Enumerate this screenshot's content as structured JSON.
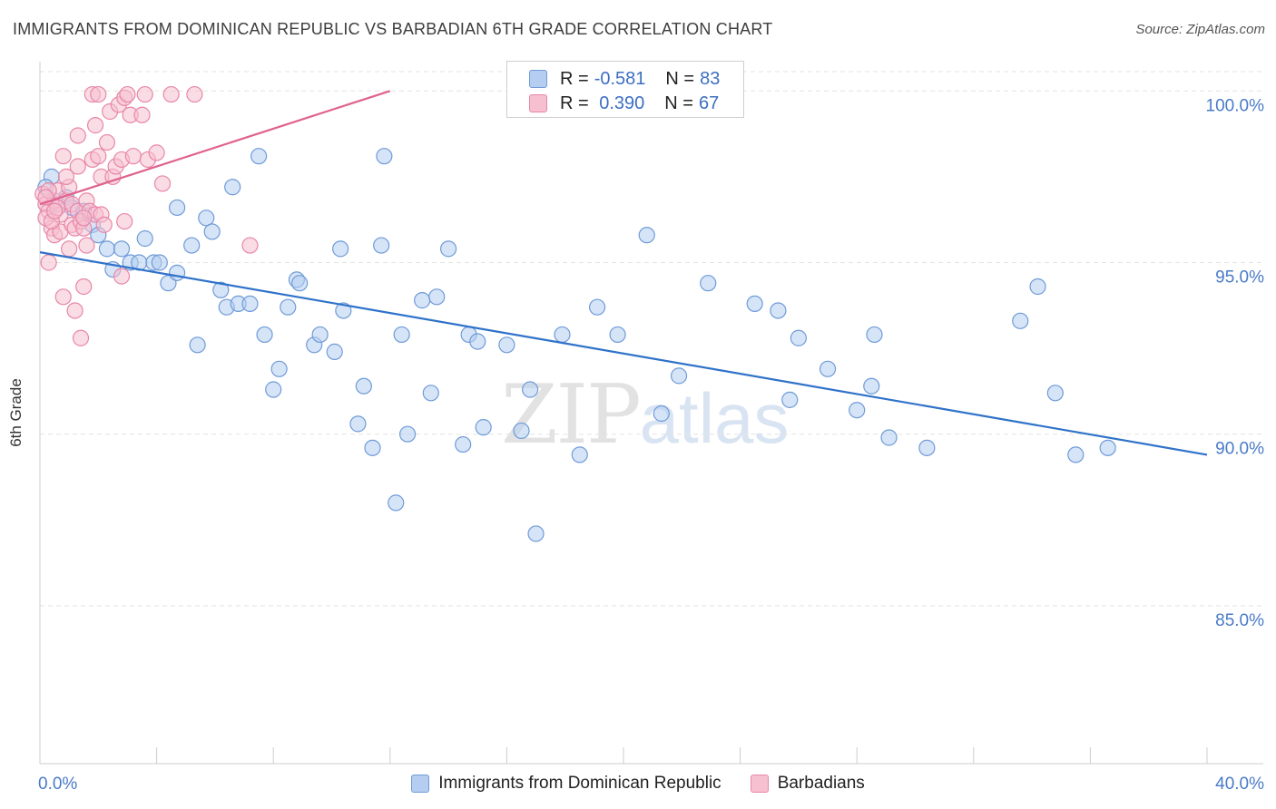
{
  "header": {
    "title": "IMMIGRANTS FROM DOMINICAN REPUBLIC VS BARBADIAN 6TH GRADE CORRELATION CHART",
    "source": "Source: ZipAtlas.com"
  },
  "watermark": {
    "zip": "ZIP",
    "atlas": "atlas"
  },
  "legend": {
    "rows": [
      {
        "r_label": "R =",
        "r_value": "-0.581",
        "n_label": "N =",
        "n_value": "83"
      },
      {
        "r_label": "R =",
        "r_value": " 0.390",
        "n_label": "N =",
        "n_value": "67"
      }
    ]
  },
  "chart_data": {
    "type": "scatter",
    "ylabel": "6th Grade",
    "xlim": [
      0,
      40
    ],
    "ylim": [
      80.4,
      100.8
    ],
    "x_tick_labels": [
      "0.0%",
      "40.0%"
    ],
    "y_ticks": [
      85,
      90,
      95,
      100
    ],
    "y_tick_labels": [
      "85.0%",
      "90.0%",
      "95.0%",
      "100.0%"
    ],
    "grid": true,
    "colors": {
      "blue_fill": "#b4cdf0",
      "blue_stroke": "#6f9bd8",
      "blue_line": "#2f72c9",
      "pink_fill": "#f6c0d0",
      "pink_stroke": "#e887a8",
      "pink_line": "#e0628f"
    },
    "series": [
      {
        "name": "Immigrants from Dominican Republic",
        "color": "blue",
        "trend": {
          "x": [
            0,
            40
          ],
          "y": [
            95.3,
            89.4
          ]
        },
        "points": [
          [
            0.4,
            97.5
          ],
          [
            0.6,
            96.7
          ],
          [
            0.9,
            96.9
          ],
          [
            1.1,
            96.6
          ],
          [
            1.5,
            96.5
          ],
          [
            1.8,
            96.1
          ],
          [
            2.0,
            95.8
          ],
          [
            2.3,
            95.4
          ],
          [
            2.5,
            94.8
          ],
          [
            2.8,
            95.4
          ],
          [
            3.1,
            95.0
          ],
          [
            3.4,
            95.0
          ],
          [
            3.6,
            95.7
          ],
          [
            3.9,
            95.0
          ],
          [
            4.1,
            95.0
          ],
          [
            4.4,
            94.4
          ],
          [
            4.7,
            94.7
          ],
          [
            4.7,
            96.6
          ],
          [
            5.2,
            95.5
          ],
          [
            5.4,
            92.6
          ],
          [
            5.7,
            96.3
          ],
          [
            5.9,
            95.9
          ],
          [
            6.2,
            94.2
          ],
          [
            6.4,
            93.7
          ],
          [
            6.6,
            97.2
          ],
          [
            6.8,
            93.8
          ],
          [
            7.2,
            93.8
          ],
          [
            7.5,
            98.1
          ],
          [
            7.7,
            92.9
          ],
          [
            8.0,
            91.3
          ],
          [
            8.2,
            91.9
          ],
          [
            8.5,
            93.7
          ],
          [
            8.8,
            94.5
          ],
          [
            8.9,
            94.4
          ],
          [
            9.4,
            92.6
          ],
          [
            9.6,
            92.9
          ],
          [
            10.1,
            92.4
          ],
          [
            10.3,
            95.4
          ],
          [
            10.4,
            93.6
          ],
          [
            10.9,
            90.3
          ],
          [
            11.1,
            91.4
          ],
          [
            11.4,
            89.6
          ],
          [
            11.7,
            95.5
          ],
          [
            11.8,
            98.1
          ],
          [
            12.2,
            88.0
          ],
          [
            12.4,
            92.9
          ],
          [
            12.6,
            90.0
          ],
          [
            13.1,
            93.9
          ],
          [
            13.4,
            91.2
          ],
          [
            13.6,
            94.0
          ],
          [
            14.0,
            95.4
          ],
          [
            14.5,
            89.7
          ],
          [
            14.7,
            92.9
          ],
          [
            15.0,
            92.7
          ],
          [
            15.2,
            90.2
          ],
          [
            16.0,
            92.6
          ],
          [
            16.5,
            90.1
          ],
          [
            16.8,
            91.3
          ],
          [
            17.0,
            87.1
          ],
          [
            17.9,
            92.9
          ],
          [
            18.5,
            89.4
          ],
          [
            19.1,
            93.7
          ],
          [
            19.8,
            92.9
          ],
          [
            20.8,
            95.8
          ],
          [
            21.3,
            90.6
          ],
          [
            21.9,
            91.7
          ],
          [
            22.9,
            94.4
          ],
          [
            24.5,
            93.8
          ],
          [
            25.3,
            93.6
          ],
          [
            25.7,
            91.0
          ],
          [
            26.0,
            92.8
          ],
          [
            27.0,
            91.9
          ],
          [
            28.0,
            90.7
          ],
          [
            28.5,
            91.4
          ],
          [
            28.6,
            92.9
          ],
          [
            29.1,
            89.9
          ],
          [
            30.4,
            89.6
          ],
          [
            33.6,
            93.3
          ],
          [
            34.2,
            94.3
          ],
          [
            34.8,
            91.2
          ],
          [
            35.5,
            89.4
          ],
          [
            36.6,
            89.6
          ],
          [
            0.2,
            97.2
          ]
        ]
      },
      {
        "name": "Barbadians",
        "color": "pink",
        "trend": {
          "x": [
            0,
            12
          ],
          "y": [
            96.7,
            100.0
          ]
        },
        "points": [
          [
            0.1,
            97.0
          ],
          [
            0.2,
            96.7
          ],
          [
            0.3,
            96.5
          ],
          [
            0.3,
            95.0
          ],
          [
            0.4,
            96.0
          ],
          [
            0.5,
            96.8
          ],
          [
            0.5,
            95.8
          ],
          [
            0.6,
            97.1
          ],
          [
            0.7,
            96.4
          ],
          [
            0.7,
            95.9
          ],
          [
            0.8,
            98.1
          ],
          [
            0.8,
            94.0
          ],
          [
            0.9,
            96.8
          ],
          [
            1.0,
            97.2
          ],
          [
            1.0,
            95.4
          ],
          [
            1.1,
            96.7
          ],
          [
            1.1,
            96.1
          ],
          [
            1.2,
            96.0
          ],
          [
            1.2,
            93.6
          ],
          [
            1.3,
            96.5
          ],
          [
            1.3,
            97.8
          ],
          [
            1.3,
            98.7
          ],
          [
            1.4,
            96.2
          ],
          [
            1.4,
            92.8
          ],
          [
            1.5,
            96.0
          ],
          [
            1.5,
            94.3
          ],
          [
            1.6,
            96.8
          ],
          [
            1.6,
            95.5
          ],
          [
            1.7,
            96.5
          ],
          [
            1.8,
            99.9
          ],
          [
            1.8,
            98.0
          ],
          [
            1.9,
            96.4
          ],
          [
            1.9,
            99.0
          ],
          [
            2.0,
            98.1
          ],
          [
            2.0,
            99.9
          ],
          [
            2.1,
            97.5
          ],
          [
            2.1,
            96.4
          ],
          [
            2.3,
            98.5
          ],
          [
            2.4,
            99.4
          ],
          [
            2.5,
            97.5
          ],
          [
            2.6,
            97.8
          ],
          [
            2.7,
            99.6
          ],
          [
            2.8,
            98.0
          ],
          [
            2.8,
            94.6
          ],
          [
            2.9,
            99.8
          ],
          [
            2.9,
            96.2
          ],
          [
            3.0,
            99.9
          ],
          [
            3.1,
            99.3
          ],
          [
            3.2,
            98.1
          ],
          [
            3.5,
            99.3
          ],
          [
            3.6,
            99.9
          ],
          [
            3.7,
            98.0
          ],
          [
            4.0,
            98.2
          ],
          [
            4.2,
            97.3
          ],
          [
            4.5,
            99.9
          ],
          [
            5.3,
            99.9
          ],
          [
            7.2,
            95.5
          ],
          [
            0.2,
            96.3
          ],
          [
            0.4,
            96.2
          ],
          [
            0.6,
            96.6
          ],
          [
            0.9,
            97.5
          ],
          [
            1.5,
            96.3
          ],
          [
            2.2,
            96.1
          ],
          [
            0.3,
            97.1
          ],
          [
            0.2,
            96.9
          ],
          [
            18.9,
            99.9
          ],
          [
            0.5,
            96.5
          ]
        ]
      }
    ]
  }
}
